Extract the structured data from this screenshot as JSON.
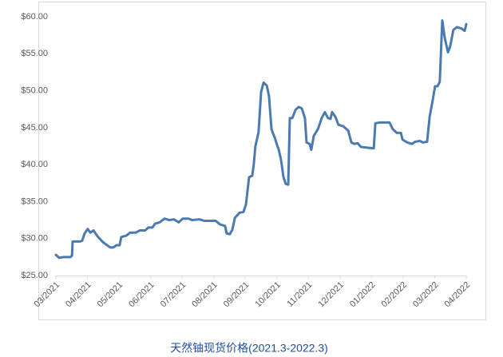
{
  "chart_data": {
    "type": "line",
    "title": "天然铀现货价格(2021.3-2022.3)",
    "xlim": [
      0,
      13
    ],
    "xticks": [
      {
        "value": 0,
        "label": "03/2021"
      },
      {
        "value": 1,
        "label": "04/2021"
      },
      {
        "value": 2,
        "label": "05/2021"
      },
      {
        "value": 3,
        "label": "06/2021"
      },
      {
        "value": 4,
        "label": "07/2021"
      },
      {
        "value": 5,
        "label": "08/2021"
      },
      {
        "value": 6,
        "label": "09/2021"
      },
      {
        "value": 7,
        "label": "10/2021"
      },
      {
        "value": 8,
        "label": "11/2021"
      },
      {
        "value": 9,
        "label": "12/2021"
      },
      {
        "value": 10,
        "label": "01/2022"
      },
      {
        "value": 11,
        "label": "02/2022"
      },
      {
        "value": 12,
        "label": "03/2022"
      },
      {
        "value": 13,
        "label": "04/2022"
      }
    ],
    "ylim": [
      25,
      60
    ],
    "yticks": [
      {
        "value": 25,
        "label": "$25.00"
      },
      {
        "value": 30,
        "label": "$30.00"
      },
      {
        "value": 35,
        "label": "$35.00"
      },
      {
        "value": 40,
        "label": "$40.00"
      },
      {
        "value": 45,
        "label": "$45.00"
      },
      {
        "value": 50,
        "label": "$50.00"
      },
      {
        "value": 55,
        "label": "$55.00"
      },
      {
        "value": 60,
        "label": "$60.00"
      }
    ],
    "grid": false,
    "x": [
      0,
      0.1,
      0.25,
      0.46,
      0.51,
      0.53,
      0.76,
      0.83,
      0.91,
      1.01,
      1.09,
      1.19,
      1.32,
      1.47,
      1.59,
      1.72,
      1.82,
      1.92,
      2.02,
      2.07,
      2.23,
      2.35,
      2.53,
      2.66,
      2.83,
      2.93,
      3.06,
      3.14,
      3.29,
      3.44,
      3.59,
      3.74,
      3.89,
      4.02,
      4.2,
      4.32,
      4.55,
      4.7,
      5.06,
      5.21,
      5.36,
      5.41,
      5.51,
      5.59,
      5.67,
      5.82,
      5.94,
      6.02,
      6.12,
      6.22,
      6.27,
      6.32,
      6.42,
      6.5,
      6.58,
      6.68,
      6.75,
      6.83,
      6.88,
      6.93,
      6.98,
      7.06,
      7.13,
      7.21,
      7.28,
      7.36,
      7.41,
      7.49,
      7.59,
      7.69,
      7.79,
      7.89,
      7.94,
      8.04,
      8.09,
      8.17,
      8.3,
      8.42,
      8.52,
      8.62,
      8.7,
      8.75,
      8.85,
      8.95,
      9.1,
      9.26,
      9.36,
      9.46,
      9.56,
      9.66,
      9.86,
      10.07,
      10.12,
      10.27,
      10.57,
      10.67,
      10.8,
      10.93,
      10.98,
      11.13,
      11.28,
      11.38,
      11.53,
      11.63,
      11.76,
      11.84,
      11.94,
      12.01,
      12.09,
      12.16,
      12.24,
      12.32,
      12.42,
      12.49,
      12.59,
      12.7,
      12.85,
      12.95,
      13
    ],
    "series": [
      {
        "color": "#4a7ab0",
        "values": [
          27.8,
          27.4,
          27.5,
          27.5,
          27.7,
          29.6,
          29.6,
          29.7,
          30.7,
          31.3,
          30.8,
          31.1,
          30.3,
          29.6,
          29.2,
          28.8,
          28.8,
          29.1,
          29.1,
          30.2,
          30.4,
          30.8,
          30.8,
          31.1,
          31.1,
          31.5,
          31.5,
          32.0,
          32.2,
          32.7,
          32.5,
          32.6,
          32.2,
          32.7,
          32.7,
          32.5,
          32.6,
          32.4,
          32.4,
          31.9,
          31.7,
          30.7,
          30.6,
          31.2,
          32.8,
          33.5,
          33.6,
          34.6,
          38.3,
          38.5,
          40.1,
          42.5,
          44.4,
          49.8,
          51.1,
          50.7,
          49.3,
          44.8,
          44.2,
          43.7,
          43.0,
          42.0,
          40.7,
          38.3,
          37.4,
          37.3,
          46.3,
          46.3,
          47.4,
          47.8,
          47.6,
          46.3,
          43.0,
          42.8,
          42.0,
          43.9,
          44.8,
          46.3,
          47.1,
          46.3,
          46.2,
          47.1,
          46.5,
          45.4,
          45.2,
          44.6,
          43.0,
          42.8,
          42.9,
          42.4,
          42.3,
          42.2,
          45.6,
          45.7,
          45.7,
          44.8,
          44.3,
          44.3,
          43.4,
          43.0,
          42.8,
          43.1,
          43.2,
          43.0,
          43.1,
          46.5,
          48.8,
          50.6,
          50.6,
          51.2,
          59.5,
          57.1,
          55.2,
          56.0,
          58.2,
          58.6,
          58.4,
          58.1,
          59.0
        ]
      }
    ]
  }
}
